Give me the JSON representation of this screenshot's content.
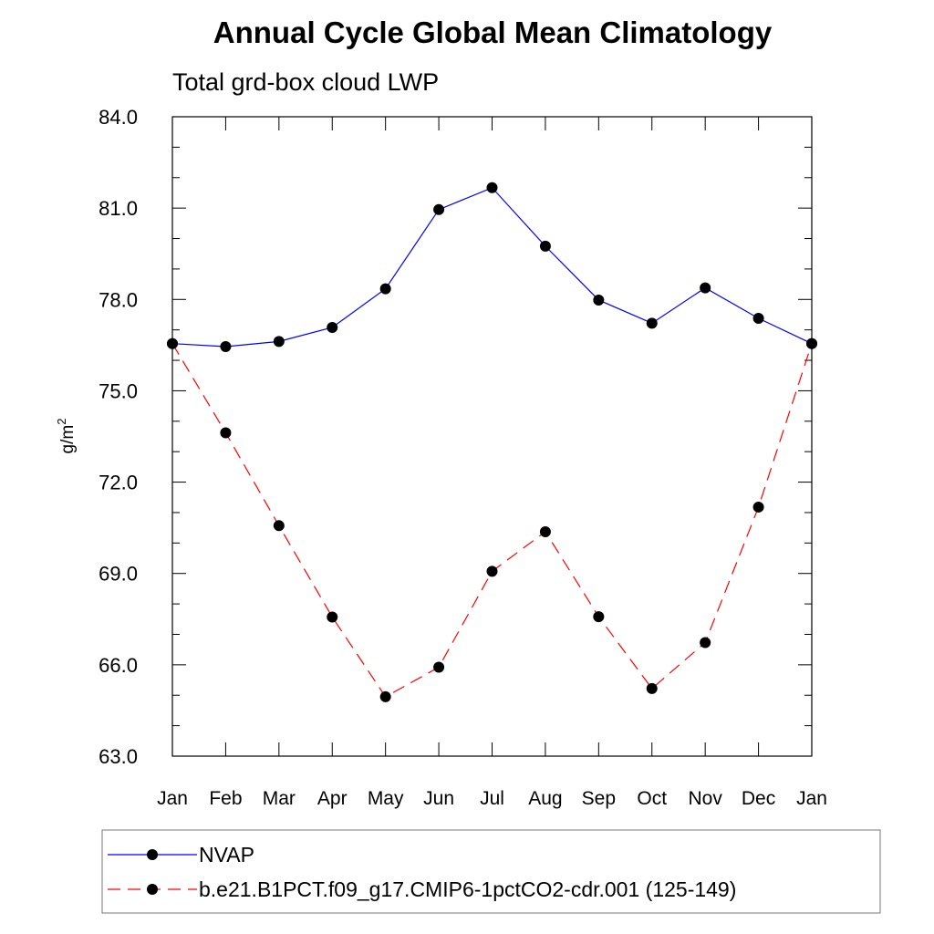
{
  "chart_data": {
    "type": "line",
    "title": "Annual Cycle Global Mean Climatology",
    "subtitle": "Total grd-box cloud LWP",
    "ylabel": "g/m",
    "ylabel_sup": "2",
    "ylim": [
      63.0,
      84.0
    ],
    "yticks": [
      "63.0",
      "66.0",
      "69.0",
      "72.0",
      "75.0",
      "78.0",
      "81.0",
      "84.0"
    ],
    "categories": [
      "Jan",
      "Feb",
      "Mar",
      "Apr",
      "May",
      "Jun",
      "Jul",
      "Aug",
      "Sep",
      "Oct",
      "Nov",
      "Dec",
      "Jan"
    ],
    "series": [
      {
        "name": "NVAP",
        "color": "#0000ff",
        "style": "solid",
        "values": [
          76.55,
          76.45,
          76.62,
          77.08,
          78.35,
          80.95,
          81.67,
          79.75,
          77.98,
          77.22,
          78.38,
          77.38,
          76.55
        ]
      },
      {
        "name": "b.e21.B1PCT.f09_g17.CMIP6-1pctCO2-cdr.001 (125-149)",
        "color": "#ff0000",
        "style": "dashed",
        "values": [
          76.55,
          73.62,
          70.57,
          67.57,
          64.95,
          65.92,
          69.07,
          70.37,
          67.58,
          65.22,
          66.73,
          71.18,
          76.55
        ]
      }
    ]
  }
}
